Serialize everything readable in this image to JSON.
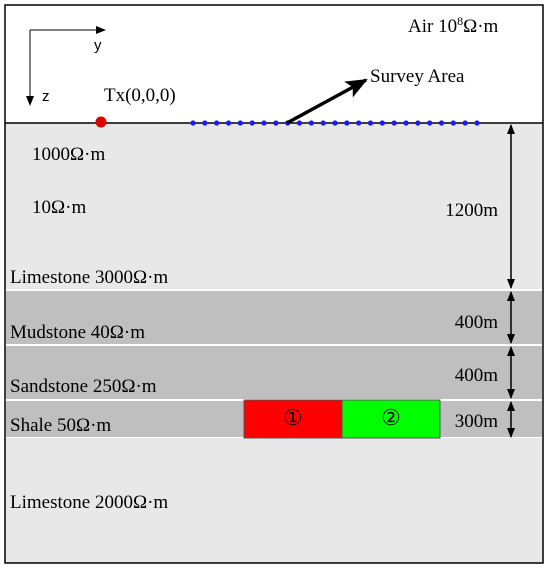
{
  "air": {
    "label": "Air  10",
    "exponent": "8",
    "unit": "Ω·m"
  },
  "axes": {
    "y": "y",
    "z": "z"
  },
  "source": "Tx(0,0,0)",
  "survey": "Survey Area",
  "layers": {
    "top_resistivity_1": "1000Ω·m",
    "top_resistivity_2": "10Ω·m",
    "limestone_top": "Limestone  3000Ω·m",
    "mudstone": "Mudstone  40Ω·m",
    "sandstone": "Sandstone  250Ω·m",
    "shale": "Shale  50Ω·m",
    "limestone_bottom": "Limestone  2000Ω·m"
  },
  "thickness": {
    "first": "1200m",
    "mudstone": "400m",
    "sandstone": "400m",
    "shale": "300m"
  },
  "anomalies": {
    "first": "①",
    "second": "②"
  }
}
